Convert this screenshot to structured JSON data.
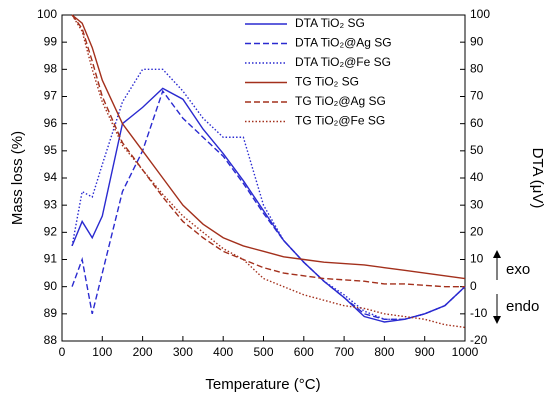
{
  "chart_data": {
    "type": "line",
    "x_label": "Temperature (°C)",
    "y_label": "Mass loss (%)",
    "y2_label": "DTA (μV)",
    "x": [
      25,
      50,
      75,
      100,
      150,
      200,
      250,
      300,
      350,
      400,
      450,
      500,
      550,
      600,
      650,
      700,
      750,
      800,
      850,
      900,
      950,
      1000
    ],
    "series": [
      {
        "name": "DTA TiO₂ SG",
        "color": "#2a2ad0",
        "dash": "solid",
        "axis": "y2",
        "values": [
          15,
          24,
          18,
          26,
          60,
          66,
          73,
          69,
          58,
          49,
          39,
          28,
          17,
          9,
          2,
          -4,
          -11,
          -13,
          -12,
          -10,
          -7,
          0
        ]
      },
      {
        "name": "DTA TiO₂@Ag SG",
        "color": "#2a2ad0",
        "dash": "dashed",
        "axis": "y2",
        "values": [
          0,
          10,
          -10,
          5,
          35,
          50,
          72,
          62,
          55,
          48,
          38,
          27,
          17,
          9,
          2,
          -4,
          -10,
          -12,
          -12,
          -10,
          -7,
          0
        ]
      },
      {
        "name": "DTA TiO₂@Fe SG",
        "color": "#2a2ad0",
        "dash": "dotted",
        "axis": "y2",
        "values": [
          15,
          35,
          33,
          45,
          68,
          80,
          80,
          72,
          62,
          55,
          55,
          30,
          17,
          9,
          2,
          -3,
          -9,
          -12,
          -12,
          -10,
          -7,
          0
        ]
      },
      {
        "name": "TG TiO₂ SG",
        "color": "#a3301c",
        "dash": "solid",
        "values": [
          100,
          99.7,
          98.8,
          97.6,
          96.0,
          95.0,
          94.0,
          93.0,
          92.3,
          91.8,
          91.5,
          91.3,
          91.1,
          91.0,
          90.9,
          90.85,
          90.8,
          90.7,
          90.6,
          90.5,
          90.4,
          90.3
        ]
      },
      {
        "name": "TG TiO₂@Ag SG",
        "color": "#a3301c",
        "dash": "dashed",
        "values": [
          100,
          99.5,
          98.3,
          97.0,
          95.3,
          94.3,
          93.3,
          92.4,
          91.8,
          91.3,
          91.0,
          90.7,
          90.5,
          90.4,
          90.3,
          90.25,
          90.2,
          90.1,
          90.1,
          90.05,
          90.0,
          90.0
        ]
      },
      {
        "name": "TG TiO₂@Fe SG",
        "color": "#a3301c",
        "dash": "dotted",
        "values": [
          100,
          99.4,
          98.0,
          96.8,
          95.2,
          94.3,
          93.4,
          92.6,
          92.0,
          91.4,
          91.0,
          90.3,
          90.0,
          89.7,
          89.5,
          89.3,
          89.2,
          89.0,
          88.9,
          88.8,
          88.6,
          88.5
        ]
      }
    ],
    "xlim": [
      0,
      1000
    ],
    "xticks": [
      0,
      100,
      200,
      300,
      400,
      500,
      600,
      700,
      800,
      900,
      1000
    ],
    "ylim": [
      88,
      100
    ],
    "yticks": [
      88,
      89,
      90,
      91,
      92,
      93,
      94,
      95,
      96,
      97,
      98,
      99,
      100
    ],
    "y2lim": [
      -20,
      100
    ],
    "y2ticks": [
      -20,
      -10,
      0,
      10,
      20,
      30,
      40,
      50,
      60,
      70,
      80,
      90,
      100
    ],
    "annotations": [
      "exo",
      "endo"
    ],
    "legend": "upper right"
  }
}
